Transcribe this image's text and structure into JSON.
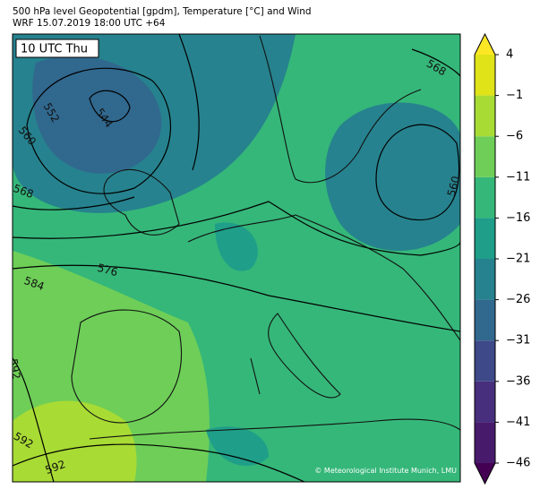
{
  "header": {
    "line1": "500 hPa level Geopotential [gpdm], Temperature [°C] and Wind",
    "line2": "WRF 15.07.2019 18:00 UTC +64"
  },
  "map": {
    "time_label": "10 UTC Thu",
    "contour_labels": [
      "568",
      "552",
      "544",
      "560",
      "568",
      "576",
      "584",
      "592",
      "592",
      "592",
      "560"
    ],
    "credit": "© Meteorological Institute Munich, LMU"
  },
  "colorbar": {
    "lim": [
      -46,
      4
    ],
    "ticks": [
      4,
      {
        "value": -1,
        "label": "−1"
      },
      {
        "value": -6,
        "label": "−6"
      },
      {
        "value": -11,
        "label": "−11"
      },
      {
        "value": -16,
        "label": "−16"
      },
      {
        "value": -21,
        "label": "−21"
      },
      {
        "value": -26,
        "label": "−26"
      },
      {
        "value": -31,
        "label": "−31"
      },
      {
        "value": -36,
        "label": "−36"
      },
      {
        "value": -41,
        "label": "−41"
      },
      {
        "value": -46,
        "label": "−46"
      }
    ],
    "colors": [
      "#481a6c",
      "#472f7d",
      "#3e4989",
      "#31688e",
      "#26828e",
      "#1f9e89",
      "#35b779",
      "#6ece58",
      "#a8db34",
      "#e0e318"
    ],
    "under_color": "#440154",
    "over_color": "#fde725"
  }
}
